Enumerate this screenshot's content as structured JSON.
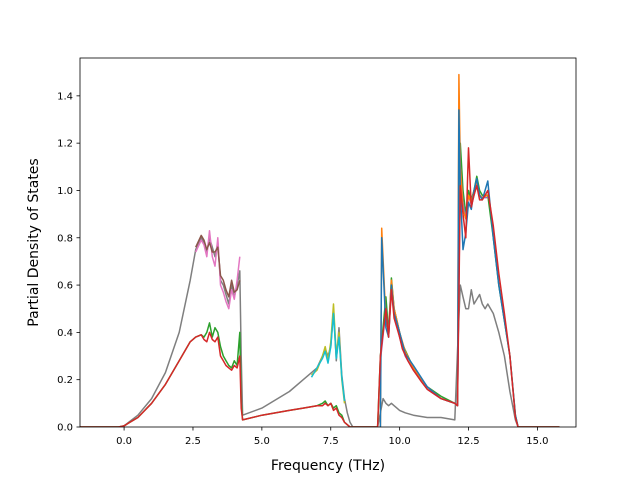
{
  "chart_data": {
    "type": "line",
    "title": "",
    "xlabel": "Frequency (THz)",
    "ylabel": "Partial Density of States",
    "xlim": [
      -1.6,
      16.4
    ],
    "ylim": [
      0.0,
      1.56
    ],
    "xticks": [
      0.0,
      2.5,
      5.0,
      7.5,
      10.0,
      12.5,
      15.0
    ],
    "xtick_labels": [
      "0.0",
      "2.5",
      "5.0",
      "7.5",
      "10.0",
      "12.5",
      "15.0"
    ],
    "yticks": [
      0.0,
      0.2,
      0.4,
      0.6,
      0.8,
      1.0,
      1.2,
      1.4
    ],
    "ytick_labels": [
      "0.0",
      "0.2",
      "0.4",
      "0.6",
      "0.8",
      "1.0",
      "1.2",
      "1.4"
    ],
    "grid": false,
    "legend": "none",
    "colors": [
      "#1f77b4",
      "#ff7f0e",
      "#2ca02c",
      "#d62728",
      "#9467bd",
      "#8c564b",
      "#e377c2",
      "#7f7f7f",
      "#bcbd22",
      "#17becf"
    ],
    "series": [
      {
        "color": "#7f7f7f",
        "x": [
          -1.6,
          -0.2,
          0.0,
          0.5,
          1.0,
          1.5,
          2.0,
          2.4,
          2.6,
          2.8,
          2.9,
          3.0,
          3.1,
          3.2,
          3.3,
          3.4,
          3.5,
          3.6,
          3.7,
          3.8,
          3.9,
          4.0,
          4.1,
          4.2,
          4.25,
          4.3,
          5.0,
          6.0,
          6.5,
          7.0,
          7.2,
          7.3,
          7.4,
          7.5,
          7.6,
          7.7,
          7.8,
          7.9,
          8.0,
          8.1,
          8.2,
          8.3,
          9.2,
          9.3,
          9.4,
          9.5,
          9.6,
          9.7,
          9.8,
          9.9,
          10.0,
          10.2,
          10.5,
          11.0,
          11.5,
          12.0,
          12.1,
          12.2,
          12.3,
          12.4,
          12.5,
          12.6,
          12.7,
          12.8,
          12.9,
          13.0,
          13.1,
          13.2,
          13.4,
          13.6,
          13.8,
          14.0,
          14.2,
          14.3,
          15.8
        ],
        "values": [
          0,
          0,
          0.005,
          0.05,
          0.12,
          0.23,
          0.4,
          0.62,
          0.75,
          0.8,
          0.78,
          0.74,
          0.8,
          0.76,
          0.72,
          0.78,
          0.62,
          0.6,
          0.56,
          0.52,
          0.6,
          0.55,
          0.6,
          0.66,
          0.3,
          0.05,
          0.08,
          0.15,
          0.2,
          0.25,
          0.3,
          0.33,
          0.3,
          0.34,
          0.5,
          0.28,
          0.42,
          0.22,
          0.12,
          0.06,
          0.02,
          0.0,
          0.0,
          0.06,
          0.12,
          0.1,
          0.09,
          0.1,
          0.09,
          0.08,
          0.07,
          0.06,
          0.05,
          0.04,
          0.04,
          0.03,
          0.32,
          0.6,
          0.55,
          0.5,
          0.5,
          0.58,
          0.52,
          0.54,
          0.56,
          0.52,
          0.5,
          0.52,
          0.48,
          0.4,
          0.3,
          0.15,
          0.03,
          0.0,
          0.0
        ]
      },
      {
        "color": "#e377c2",
        "x": [
          2.6,
          2.8,
          2.9,
          3.0,
          3.1,
          3.2,
          3.3,
          3.4,
          3.5,
          3.6,
          3.7,
          3.8,
          3.9,
          4.0,
          4.1,
          4.2
        ],
        "values": [
          0.74,
          0.79,
          0.77,
          0.72,
          0.83,
          0.72,
          0.68,
          0.8,
          0.6,
          0.57,
          0.53,
          0.5,
          0.58,
          0.54,
          0.62,
          0.72
        ]
      },
      {
        "color": "#8c564b",
        "x": [
          2.6,
          2.8,
          2.9,
          3.0,
          3.1,
          3.2,
          3.3,
          3.4,
          3.5,
          3.6,
          3.7,
          3.8,
          3.9,
          4.0,
          4.1,
          4.2
        ],
        "values": [
          0.76,
          0.81,
          0.79,
          0.75,
          0.78,
          0.74,
          0.74,
          0.76,
          0.64,
          0.62,
          0.58,
          0.55,
          0.62,
          0.57,
          0.58,
          0.62
        ]
      },
      {
        "color": "#bcbd22",
        "x": [
          6.8,
          7.0,
          7.2,
          7.3,
          7.4,
          7.5,
          7.6,
          7.7,
          7.8,
          7.9,
          8.0
        ],
        "values": [
          0.22,
          0.24,
          0.3,
          0.34,
          0.28,
          0.36,
          0.52,
          0.3,
          0.4,
          0.2,
          0.1
        ]
      },
      {
        "color": "#17becf",
        "x": [
          6.8,
          7.0,
          7.2,
          7.3,
          7.4,
          7.5,
          7.6,
          7.7,
          7.8,
          7.9,
          8.0
        ],
        "values": [
          0.21,
          0.25,
          0.29,
          0.32,
          0.27,
          0.34,
          0.48,
          0.29,
          0.38,
          0.21,
          0.11
        ]
      },
      {
        "color": "#2ca02c",
        "x": [
          -1.6,
          -0.2,
          0.0,
          0.5,
          1.0,
          1.5,
          2.0,
          2.4,
          2.6,
          2.8,
          2.9,
          3.0,
          3.1,
          3.2,
          3.3,
          3.4,
          3.5,
          3.6,
          3.7,
          3.8,
          3.9,
          4.0,
          4.1,
          4.2,
          4.25,
          4.3,
          5.0,
          6.0,
          6.5,
          7.0,
          7.2,
          7.3,
          7.4,
          7.5,
          7.6,
          7.7,
          7.8,
          7.9,
          8.0,
          8.2,
          9.2,
          9.3,
          9.5,
          9.6,
          9.7,
          9.8,
          9.9,
          10.0,
          10.1,
          10.3,
          10.5,
          10.8,
          11.0,
          11.5,
          12.0,
          12.1,
          12.2,
          12.3,
          12.4,
          12.5,
          12.6,
          12.7,
          12.8,
          12.9,
          13.0,
          13.2,
          13.4,
          13.6,
          13.8,
          14.0,
          14.2,
          14.3,
          15.8
        ],
        "values": [
          0,
          0,
          0.005,
          0.04,
          0.1,
          0.18,
          0.28,
          0.36,
          0.38,
          0.39,
          0.38,
          0.4,
          0.44,
          0.38,
          0.42,
          0.4,
          0.34,
          0.3,
          0.28,
          0.26,
          0.25,
          0.28,
          0.26,
          0.4,
          0.1,
          0.03,
          0.05,
          0.07,
          0.08,
          0.09,
          0.1,
          0.11,
          0.09,
          0.1,
          0.08,
          0.09,
          0.06,
          0.05,
          0.02,
          0.0,
          0.0,
          0.3,
          0.55,
          0.4,
          0.63,
          0.5,
          0.45,
          0.4,
          0.35,
          0.3,
          0.25,
          0.2,
          0.17,
          0.13,
          0.1,
          0.09,
          1.2,
          1.0,
          0.9,
          1.0,
          0.96,
          1.0,
          1.06,
          1.0,
          0.98,
          0.98,
          0.8,
          0.6,
          0.45,
          0.3,
          0.05,
          0.0,
          0.0
        ]
      },
      {
        "color": "#9467bd",
        "x": [
          9.3,
          9.5,
          9.6,
          9.7,
          9.8,
          9.9,
          10.0,
          10.2,
          10.5,
          11.0,
          11.5,
          12.0,
          12.1,
          12.2,
          12.3,
          12.4,
          12.5,
          12.6,
          12.7,
          12.8,
          12.9,
          13.0,
          13.2
        ],
        "values": [
          0.28,
          0.5,
          0.38,
          0.6,
          0.48,
          0.44,
          0.38,
          0.3,
          0.24,
          0.16,
          0.12,
          0.1,
          0.09,
          1.1,
          0.95,
          0.88,
          0.98,
          0.94,
          0.98,
          1.03,
          0.98,
          0.97,
          0.97
        ]
      },
      {
        "color": "#ff7f0e",
        "x": [
          9.3,
          9.35,
          9.5,
          9.6,
          9.7,
          9.8,
          9.9,
          10.0,
          10.2,
          10.5,
          11.0,
          11.5,
          12.0,
          12.1,
          12.15,
          12.2,
          12.3,
          12.4,
          12.5,
          12.6,
          12.7,
          12.8,
          12.9,
          13.0,
          13.2
        ],
        "values": [
          0.0,
          0.84,
          0.45,
          0.4,
          0.62,
          0.5,
          0.45,
          0.4,
          0.32,
          0.25,
          0.17,
          0.12,
          0.1,
          0.09,
          1.49,
          1.1,
          0.92,
          0.88,
          0.98,
          0.95,
          1.0,
          1.04,
          0.98,
          0.97,
          0.98
        ]
      },
      {
        "color": "#1f77b4",
        "x": [
          9.3,
          9.35,
          9.5,
          9.6,
          9.7,
          9.8,
          9.9,
          10.0,
          10.2,
          10.5,
          11.0,
          11.5,
          12.0,
          12.1,
          12.15,
          12.2,
          12.3,
          12.4,
          12.5,
          12.6,
          12.7,
          12.8,
          12.9,
          13.0,
          13.2,
          13.4,
          13.6,
          13.8,
          14.0,
          14.2,
          14.3
        ],
        "values": [
          0.0,
          0.8,
          0.42,
          0.38,
          0.6,
          0.48,
          0.44,
          0.4,
          0.31,
          0.26,
          0.17,
          0.12,
          0.1,
          0.09,
          1.34,
          1.0,
          0.75,
          0.82,
          0.95,
          0.92,
          1.0,
          1.05,
          0.98,
          0.96,
          1.04,
          0.8,
          0.6,
          0.45,
          0.3,
          0.05,
          0.0
        ]
      },
      {
        "color": "#d62728",
        "x": [
          -1.6,
          -0.2,
          0.0,
          0.5,
          1.0,
          1.5,
          2.0,
          2.4,
          2.6,
          2.8,
          2.9,
          3.0,
          3.1,
          3.2,
          3.3,
          3.4,
          3.5,
          3.6,
          3.7,
          3.8,
          3.9,
          4.0,
          4.1,
          4.2,
          4.25,
          4.3,
          5.0,
          6.0,
          6.5,
          7.0,
          7.2,
          7.3,
          7.4,
          7.5,
          7.6,
          7.7,
          7.8,
          7.9,
          8.0,
          8.2,
          9.2,
          9.3,
          9.5,
          9.6,
          9.7,
          9.8,
          9.9,
          10.0,
          10.1,
          10.3,
          10.5,
          10.8,
          11.0,
          11.5,
          12.0,
          12.1,
          12.2,
          12.3,
          12.4,
          12.5,
          12.6,
          12.7,
          12.8,
          12.9,
          13.0,
          13.2,
          13.4,
          13.6,
          13.8,
          14.0,
          14.2,
          14.3,
          15.8
        ],
        "values": [
          0,
          0,
          0.005,
          0.04,
          0.1,
          0.18,
          0.28,
          0.36,
          0.38,
          0.39,
          0.37,
          0.36,
          0.4,
          0.37,
          0.36,
          0.38,
          0.3,
          0.28,
          0.26,
          0.25,
          0.24,
          0.26,
          0.25,
          0.3,
          0.08,
          0.03,
          0.05,
          0.07,
          0.08,
          0.09,
          0.09,
          0.1,
          0.09,
          0.1,
          0.07,
          0.08,
          0.05,
          0.04,
          0.02,
          0.0,
          0.0,
          0.3,
          0.5,
          0.38,
          0.58,
          0.46,
          0.42,
          0.38,
          0.33,
          0.28,
          0.24,
          0.19,
          0.16,
          0.12,
          0.1,
          0.09,
          1.02,
          0.9,
          0.8,
          1.18,
          0.93,
          0.98,
          1.02,
          0.96,
          0.96,
          1.0,
          0.85,
          0.65,
          0.48,
          0.3,
          0.04,
          0.0,
          0.0
        ]
      }
    ]
  }
}
